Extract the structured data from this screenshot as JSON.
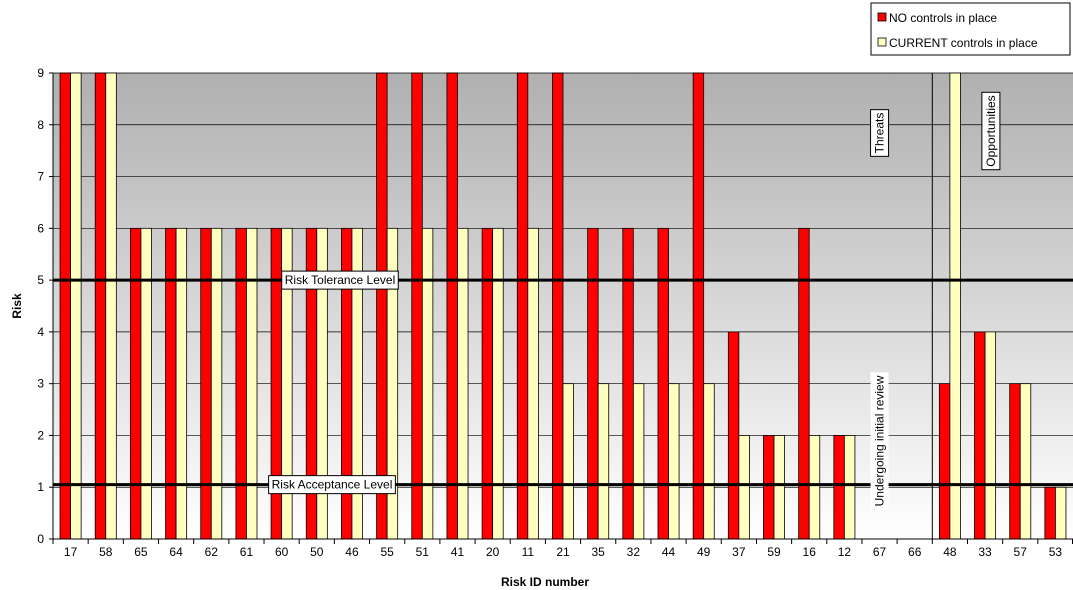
{
  "chart_data": {
    "type": "bar",
    "title": "",
    "xlabel": "Risk ID number",
    "ylabel": "Risk",
    "ylim": [
      0,
      9
    ],
    "yticks": [
      0,
      1,
      2,
      3,
      4,
      5,
      6,
      7,
      8,
      9
    ],
    "grid": "horizontal",
    "legend_position": "top-right",
    "categories": [
      "17",
      "58",
      "65",
      "64",
      "62",
      "61",
      "60",
      "50",
      "46",
      "55",
      "51",
      "41",
      "20",
      "11",
      "21",
      "35",
      "32",
      "44",
      "49",
      "37",
      "59",
      "16",
      "12",
      "67",
      "66",
      "48",
      "33",
      "57",
      "53"
    ],
    "series": [
      {
        "name": "NO controls in place",
        "color": "#ff0000",
        "values": [
          9,
          9,
          6,
          6,
          6,
          6,
          6,
          6,
          6,
          9,
          9,
          9,
          6,
          9,
          9,
          6,
          6,
          6,
          9,
          4,
          2,
          6,
          2,
          null,
          null,
          3,
          4,
          3,
          1
        ]
      },
      {
        "name": "CURRENT controls in place",
        "color": "#ffffc0",
        "values": [
          9,
          9,
          6,
          6,
          6,
          6,
          6,
          6,
          6,
          6,
          6,
          6,
          6,
          6,
          3,
          3,
          3,
          3,
          3,
          2,
          2,
          2,
          2,
          null,
          null,
          9,
          4,
          3,
          1
        ]
      }
    ],
    "reference_lines": [
      {
        "label": "Risk Tolerance Level",
        "value": 5
      },
      {
        "label": "Risk Acceptance Level",
        "value": 1.05
      }
    ],
    "annotations": {
      "threats": "Threats",
      "opportunities": "Opportunities",
      "review": "Undergoing initial review"
    },
    "section_divider_after_index": 24
  }
}
